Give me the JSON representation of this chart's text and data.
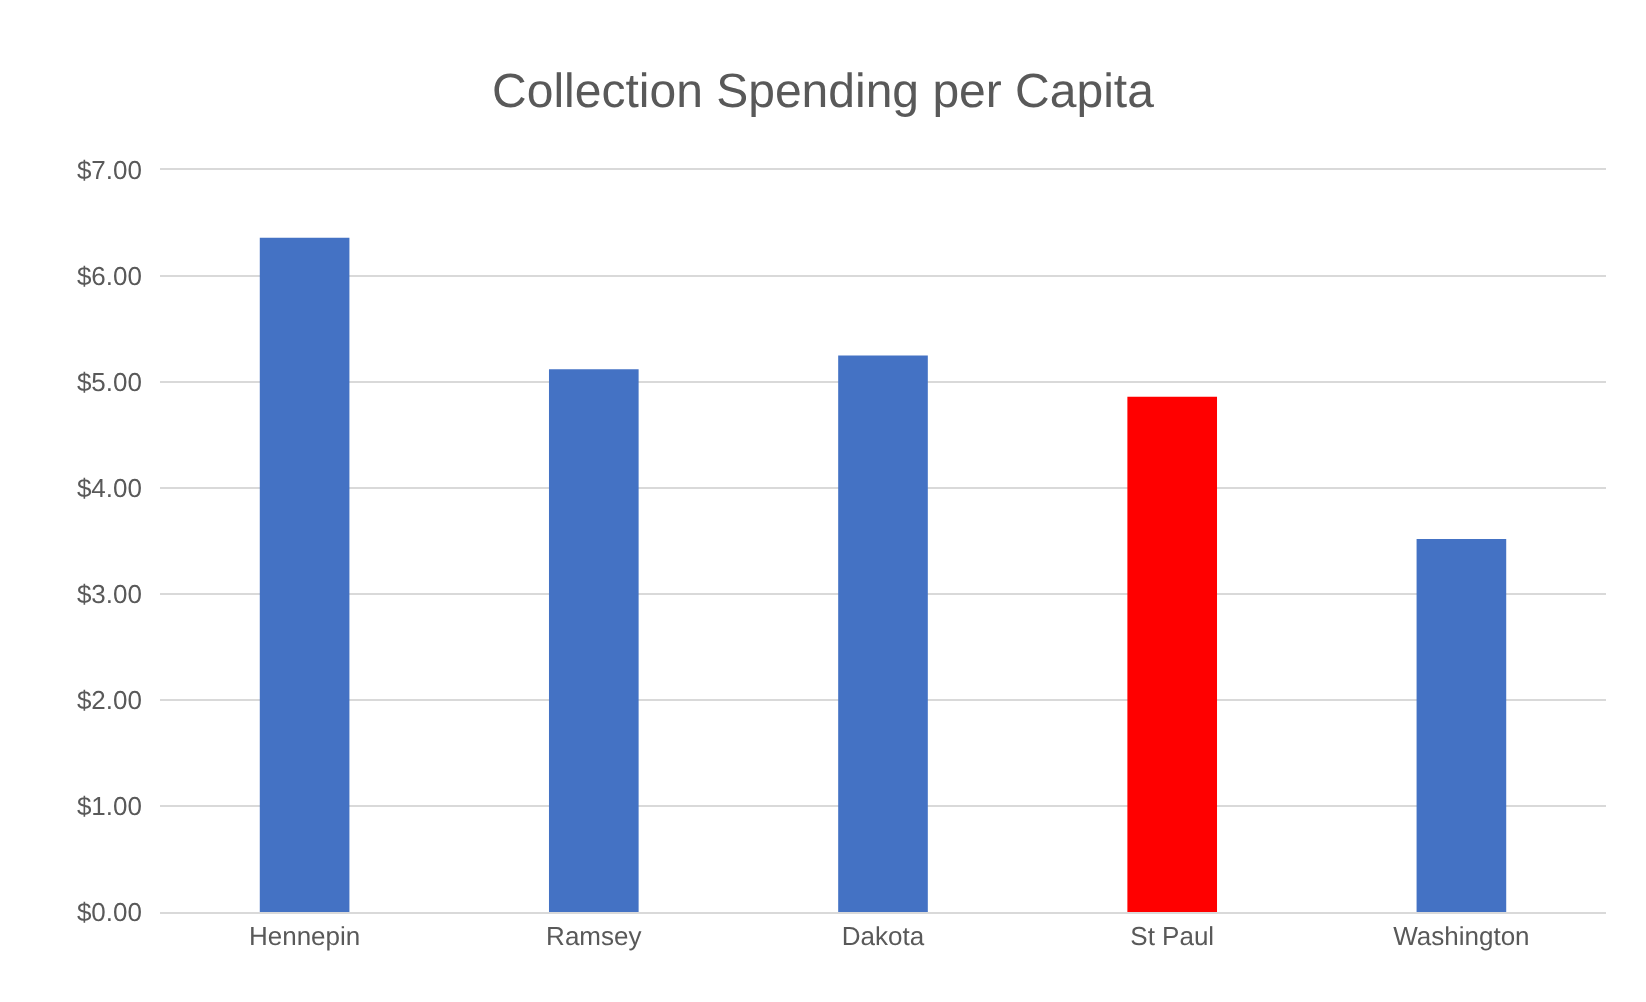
{
  "chart_data": {
    "type": "bar",
    "title": "Collection Spending per Capita",
    "categories": [
      "Hennepin",
      "Ramsey",
      "Dakota",
      "St Paul",
      "Washington"
    ],
    "values": [
      6.36,
      5.12,
      5.25,
      4.86,
      3.52
    ],
    "colors": [
      "#4472c4",
      "#4472c4",
      "#4472c4",
      "#ff0000",
      "#4472c4"
    ],
    "ylim": [
      0,
      7
    ],
    "yticks": [
      {
        "value": 0,
        "label": "$0.00"
      },
      {
        "value": 1,
        "label": "$1.00"
      },
      {
        "value": 2,
        "label": "$2.00"
      },
      {
        "value": 3,
        "label": "$3.00"
      },
      {
        "value": 4,
        "label": "$4.00"
      },
      {
        "value": 5,
        "label": "$5.00"
      },
      {
        "value": 6,
        "label": "$6.00"
      },
      {
        "value": 7,
        "label": "$7.00"
      }
    ],
    "grid": "y"
  }
}
